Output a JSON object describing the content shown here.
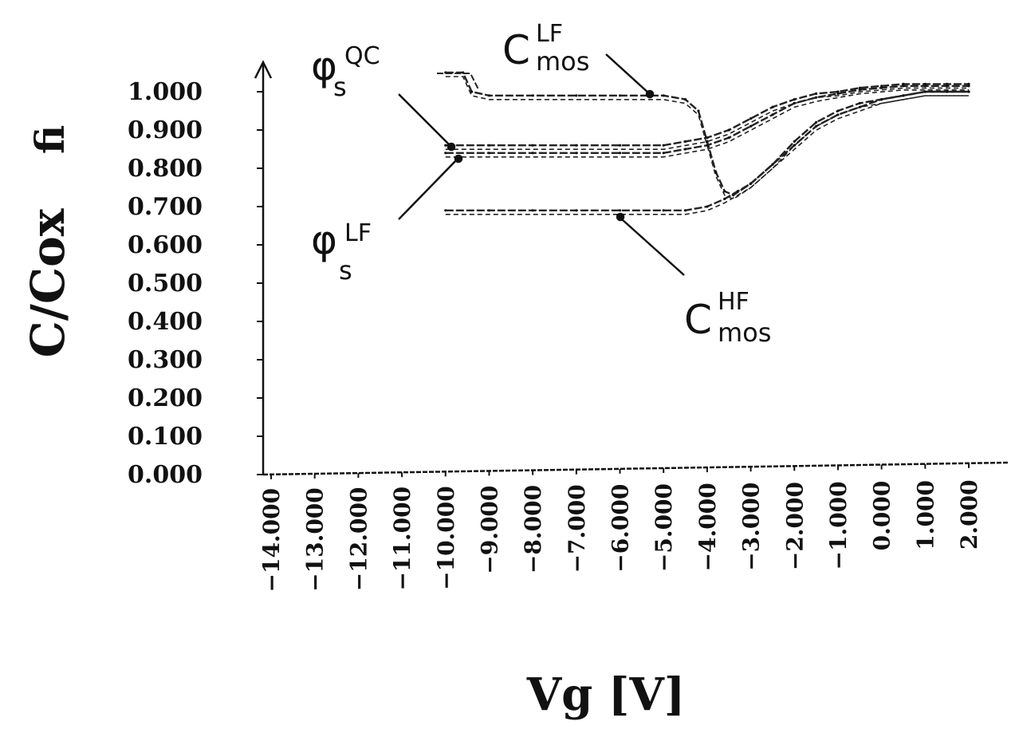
{
  "chart_data": {
    "type": "line",
    "ylabel": "C/Cox",
    "ylabel_right": "fi",
    "xlabel": "Vg [V]",
    "ylim": [
      0,
      1
    ],
    "xlim": [
      -14,
      2
    ],
    "yticks": [
      "0.000",
      "0.100",
      "0.200",
      "0.300",
      "0.400",
      "0.500",
      "0.600",
      "0.700",
      "0.800",
      "0.900",
      "1.000"
    ],
    "xticks": [
      "-14.000",
      "-13.000",
      "-12.000",
      "-11.000",
      "-10.000",
      "-9.000",
      "-8.000",
      "-7.000",
      "-6.000",
      "-5.000",
      "-4.000",
      "-3.000",
      "-2.000",
      "-1.000",
      "0.000",
      "1.000",
      "2.000"
    ],
    "series": [
      {
        "name": "C_mos^LF",
        "x": [
          -10,
          -9.6,
          -9.4,
          -9,
          -8,
          -7,
          -6,
          -5,
          -4.5,
          -4.2,
          -4.0,
          -3.8,
          -3.6,
          -3.4,
          -3.0,
          -2.5,
          -2.0,
          -1.5,
          -1.0,
          -0.5,
          0,
          0.5,
          1.0,
          1.5,
          2.0
        ],
        "values": [
          1.05,
          1.05,
          1.0,
          0.99,
          0.99,
          0.99,
          0.99,
          0.99,
          0.98,
          0.95,
          0.87,
          0.79,
          0.74,
          0.73,
          0.76,
          0.81,
          0.87,
          0.92,
          0.95,
          0.97,
          0.98,
          0.99,
          1.0,
          1.0,
          1.0
        ]
      },
      {
        "name": "C_mos^HF",
        "x": [
          -10,
          -9,
          -8,
          -7,
          -6,
          -5,
          -4.5,
          -4.0,
          -3.6,
          -3.3,
          -3.0,
          -2.5,
          -2.0,
          -1.5,
          -1.0,
          -0.5,
          0,
          0.5,
          1.0,
          1.5,
          2.0
        ],
        "values": [
          0.69,
          0.69,
          0.69,
          0.69,
          0.69,
          0.69,
          0.69,
          0.7,
          0.72,
          0.74,
          0.76,
          0.81,
          0.86,
          0.91,
          0.94,
          0.96,
          0.98,
          0.99,
          1.0,
          1.0,
          1.0
        ]
      },
      {
        "name": "phi_s^QC",
        "x": [
          -10,
          -9,
          -8,
          -7,
          -6,
          -5,
          -4.5,
          -4.0,
          -3.5,
          -3.0,
          -2.5,
          -2.0,
          -1.5,
          -1.0,
          -0.5,
          0,
          0.5,
          1.0,
          1.5,
          2.0
        ],
        "values": [
          0.86,
          0.86,
          0.86,
          0.86,
          0.86,
          0.86,
          0.87,
          0.88,
          0.9,
          0.93,
          0.96,
          0.98,
          0.995,
          1.0,
          1.01,
          1.015,
          1.02,
          1.02,
          1.02,
          1.02
        ]
      },
      {
        "name": "phi_s^LF",
        "x": [
          -10,
          -9,
          -8,
          -7,
          -6,
          -5,
          -4.5,
          -4.0,
          -3.5,
          -3.0,
          -2.5,
          -2.0,
          -1.5,
          -1.0,
          -0.5,
          0,
          0.5,
          1.0,
          1.5,
          2.0
        ],
        "values": [
          0.84,
          0.84,
          0.84,
          0.84,
          0.84,
          0.84,
          0.85,
          0.86,
          0.88,
          0.91,
          0.94,
          0.97,
          0.985,
          0.995,
          1.005,
          1.01,
          1.015,
          1.015,
          1.015,
          1.015
        ]
      }
    ],
    "annotations": {
      "phi_qc": {
        "main": "φ",
        "sub": "s",
        "sup": "QC"
      },
      "phi_lf": {
        "main": "φ",
        "sub": "s",
        "sup": "LF"
      },
      "c_lf": {
        "main": "C",
        "sub": "mos",
        "sup": "LF"
      },
      "c_hf": {
        "main": "C",
        "sub": "mos",
        "sup": "HF"
      }
    },
    "grid": false
  }
}
